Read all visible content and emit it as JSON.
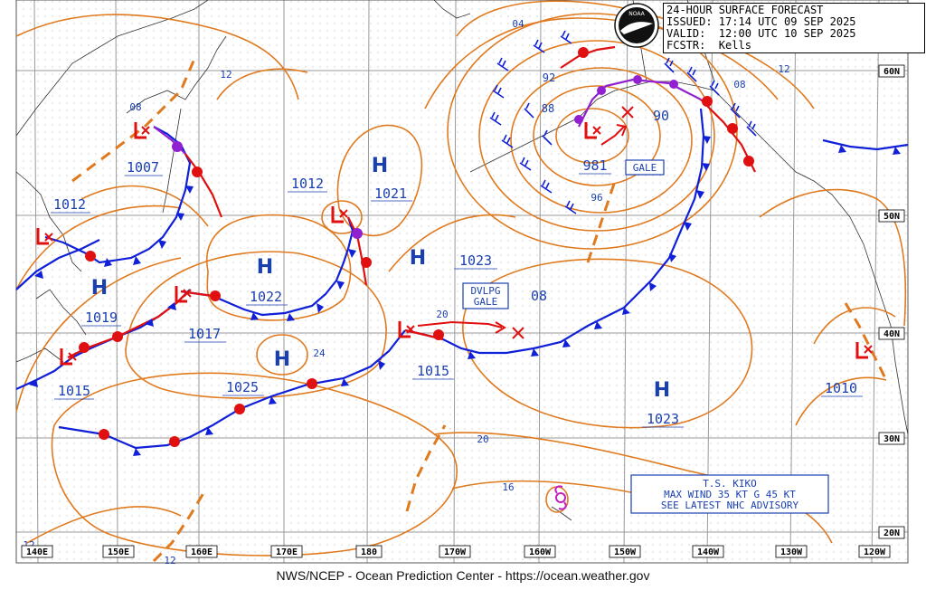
{
  "header": {
    "line1": "24-HOUR SURFACE FORECAST",
    "line2": "ISSUED: 17:14 UTC 09 SEP 2025",
    "line3": "VALID:  12:00 UTC 10 SEP 2025",
    "line4": "FCSTR:  Kells"
  },
  "footer": "NWS/NCEP - Ocean Prediction Center - https://ocean.weather.gov",
  "lat_labels": [
    "60N",
    "50N",
    "40N",
    "30N",
    "20N"
  ],
  "lon_labels": [
    "140E",
    "150E",
    "160E",
    "170E",
    "180",
    "170W",
    "160W",
    "150W",
    "140W",
    "130W",
    "120W"
  ],
  "highs": [
    {
      "letter": "H",
      "value": "1021"
    },
    {
      "letter": "H",
      "value": "1022"
    },
    {
      "letter": "H",
      "value": "1019"
    },
    {
      "letter": "H",
      "value": "1023"
    },
    {
      "letter": "H",
      "value": "1023"
    },
    {
      "letter": "H",
      "value": "24"
    }
  ],
  "lows": [
    {
      "value": "1007"
    },
    {
      "value": "1012"
    },
    {
      "value": "1012"
    },
    {
      "value": "1017"
    },
    {
      "value": "1015"
    },
    {
      "value": "1015"
    },
    {
      "value": "981"
    },
    {
      "value": "1010"
    }
  ],
  "isobar_labels": [
    "04",
    "12",
    "08",
    "92",
    "88",
    "90",
    "96",
    "12",
    "08",
    "20",
    "08",
    "20",
    "16",
    "12",
    "12"
  ],
  "boxes": {
    "gale": "GALE",
    "dvlpg1": "DVLPG",
    "dvlpg2": "GALE"
  },
  "kiko": {
    "line1": "T.S. KIKO",
    "line2": "MAX WIND 35 KT G 45 KT",
    "line3": "SEE LATEST NHC ADVISORY"
  },
  "logo": "NOAA",
  "colors": {
    "isobar": "#e07a1f",
    "cold_front": "#1020d8",
    "warm_front": "#e01010",
    "occluded": "#9020d0",
    "label": "#1a3fb0",
    "grid": "#9a9a9a"
  }
}
